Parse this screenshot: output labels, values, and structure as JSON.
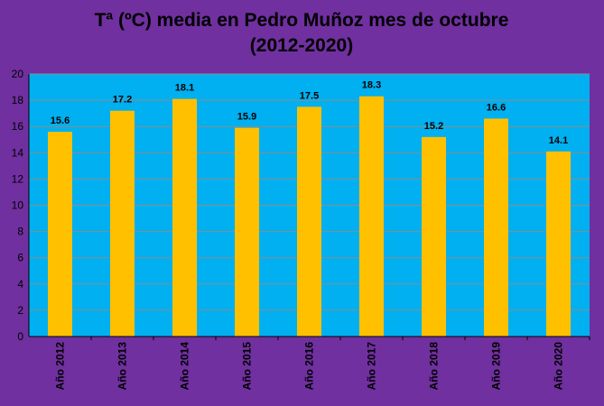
{
  "chart_data": {
    "type": "bar",
    "title_lines": [
      "Tª (ºC) media en Pedro Muñoz mes de octubre",
      "(2012-2020)"
    ],
    "xlabel": "",
    "ylabel": "",
    "categories": [
      "Año 2012",
      "Año 2013",
      "Año 2014",
      "Año 2015",
      "Año 2016",
      "Año 2017",
      "Año 2018",
      "Año 2019",
      "Año 2020"
    ],
    "series": [
      {
        "values": [
          15.6,
          17.2,
          18.1,
          15.9,
          17.5,
          18.3,
          15.2,
          16.6,
          14.1
        ]
      }
    ],
    "data_labels": [
      "15.6",
      "17.2",
      "18.1",
      "15.9",
      "17.5",
      "18.3",
      "15.2",
      "16.6",
      "14.1"
    ],
    "ylim": [
      0,
      20
    ],
    "yticks": [
      "0",
      "2",
      "4",
      "6",
      "8",
      "10",
      "12",
      "14",
      "16",
      "18",
      "20"
    ],
    "grid": true,
    "legend": "none",
    "colors": {
      "background": "#7030a0",
      "plot_area": "#00b0f0",
      "bar": "#ffc000",
      "gridline": "#8c8c8c",
      "axis": "#000000"
    }
  }
}
